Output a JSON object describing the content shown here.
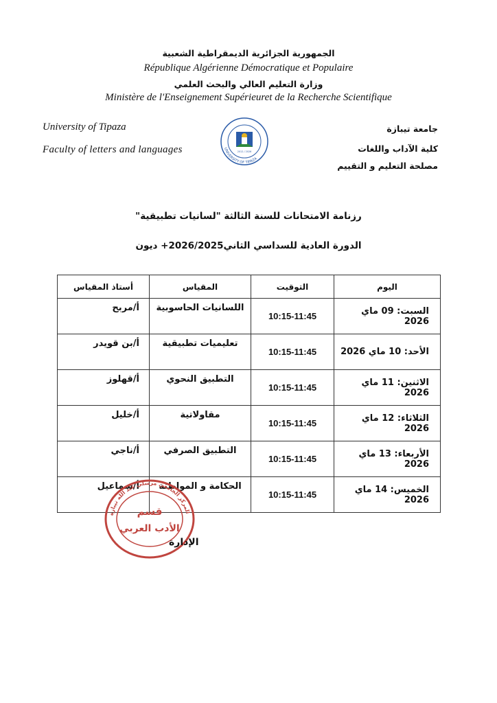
{
  "header": {
    "republic_ar": "الجمهورية الجزائرية الديمقراطية الشعبية",
    "republic_fr": "République Algérienne Démocratique et Populaire",
    "ministry_ar": "وزارة التعليم العالي والبحث العلمي",
    "ministry_fr": "Ministère de l'Enseignement Supérieuret de la Recherche Scientifique"
  },
  "institution": {
    "university_en": "University of Tipaza",
    "faculty_en": "Faculty  of  letters  and  languages",
    "university_ar": "جامعة تيبازة",
    "faculty_ar": "كلية الآداب واللغات",
    "service_ar": "مصلحة التعليم و التقييم",
    "logo_text": "UNIVERSITY OF TIPAZA",
    "logo_year": "2012 / 2026"
  },
  "document": {
    "title": "رزنامة الامتحانات للسنة الثالثة \"لسانيات تطبيقية\"",
    "subtitle": "الدورة العادية للسداسي الثاني2026/2025+ ديون"
  },
  "table": {
    "headers": {
      "day": "اليوم",
      "time": "التوقيت",
      "subject": "المقياس",
      "professor": "أستاذ المقياس"
    },
    "rows": [
      {
        "day": "السبت: 09 ماي 2026",
        "time": "10:15-11:45",
        "subject": "اللسانيات الحاسوبية",
        "professor": "أ/مربح"
      },
      {
        "day": "الأحد: 10 ماي 2026",
        "time": "10:15-11:45",
        "subject": "تعليميات تطبيقية",
        "professor": "أ/بن قويدر"
      },
      {
        "day": "الاثنين: 11 ماي 2026",
        "time": "10:15-11:45",
        "subject": "التطبيق النحوي",
        "professor": "أ/قهلوز"
      },
      {
        "day": "الثلاثاء: 12 ماي 2026",
        "time": "10:15-11:45",
        "subject": "مقاولاتية",
        "professor": "أ/خليل"
      },
      {
        "day": "الأربعاء: 13 ماي 2026",
        "time": "10:15-11:45",
        "subject": "التطبيق الصرفي",
        "professor": "أ/ناجي"
      },
      {
        "day": "الخميس: 14 ماي 2026",
        "time": "10:15-11:45",
        "subject": "الحكامة و المواطنة",
        "professor": "أ/سماعيل"
      }
    ]
  },
  "stamp": {
    "line1": "قسم",
    "line2": "الأدب العربي",
    "ring": "المركز الجامعي مرسلي عبد الله تيبازة"
  },
  "signature": {
    "label": "الإدارة"
  },
  "colors": {
    "stamp": "#c0453f",
    "logo_blue": "#2a5ba8",
    "logo_green": "#2f8a3c",
    "logo_gold": "#e6b422"
  }
}
